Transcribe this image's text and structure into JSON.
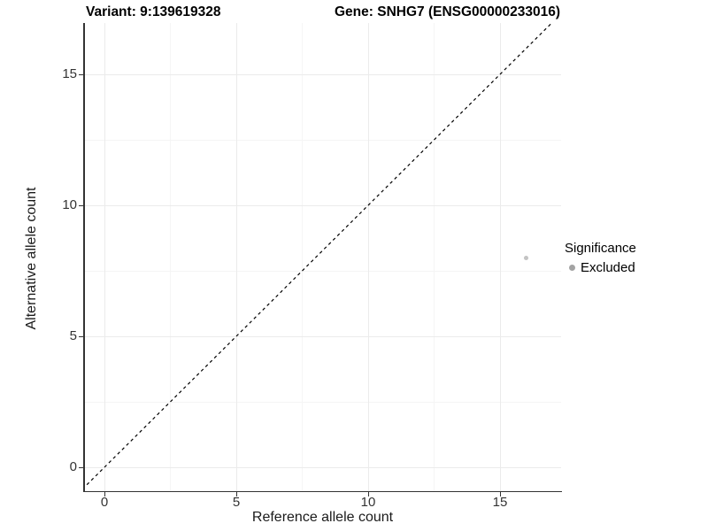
{
  "chart_data": {
    "type": "scatter",
    "title_left": "Variant: 9:139619328",
    "title_right": "Gene: SNHG7 (ENSG00000233016)",
    "xlabel": "Reference allele count",
    "ylabel": "Alternative allele count",
    "x_ticks": [
      0,
      5,
      10,
      15
    ],
    "x_minor_ticks": [
      2.5,
      7.5,
      12.5
    ],
    "y_ticks": [
      0,
      5,
      10,
      15
    ],
    "y_minor_ticks": [
      2.5,
      7.5,
      12.5
    ],
    "xlim": [
      -0.8,
      17.3
    ],
    "ylim": [
      -0.9,
      17.0
    ],
    "grid": "major and minor gridlines on white background",
    "reference_line": {
      "kind": "identity y=x",
      "style": "dashed",
      "color": "#000000"
    },
    "points": [
      {
        "x": 16,
        "y": 8,
        "series": "Excluded",
        "color": "#c4c4c4",
        "radius": 2.4
      }
    ],
    "legend": {
      "title": "Significance",
      "position": "right",
      "entries": [
        {
          "label": "Excluded",
          "color": "#a3a3a3"
        }
      ]
    },
    "colors": {
      "grid_major": "#ebebeb",
      "grid_minor": "#f5f5f5",
      "axis_line": "#333333",
      "tick_label": "#333333",
      "background": "#ffffff"
    }
  }
}
